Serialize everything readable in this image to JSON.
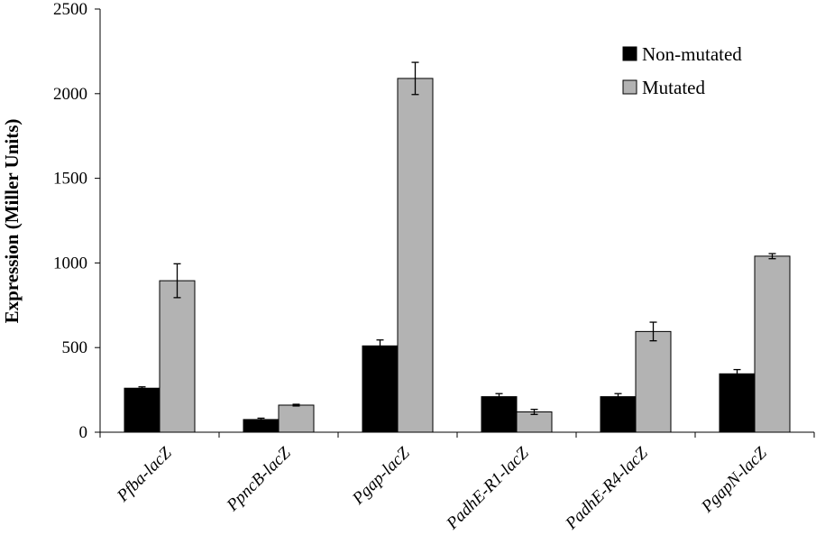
{
  "chart_data": {
    "type": "bar",
    "title": "",
    "xlabel": "",
    "ylabel": "Expression (Miller Units)",
    "ylim": [
      0,
      2500
    ],
    "yticks": [
      0,
      500,
      1000,
      1500,
      2000,
      2500
    ],
    "categories": [
      "Pfba-lacZ",
      "PpncB-lacZ",
      "Pgap-lacZ",
      "PadhE-R1-lacZ",
      "PadhE-R4-lacZ",
      "PgapN-lacZ"
    ],
    "series": [
      {
        "name": "Non-mutated",
        "color": "#000000",
        "values": [
          260,
          75,
          510,
          210,
          210,
          345
        ],
        "errors": [
          8,
          8,
          35,
          18,
          18,
          25
        ]
      },
      {
        "name": "Mutated",
        "color": "#b3b3b3",
        "values": [
          895,
          160,
          2090,
          120,
          595,
          1040
        ],
        "errors": [
          100,
          5,
          95,
          15,
          55,
          15
        ]
      }
    ],
    "legend": "top-right",
    "grid": false
  }
}
